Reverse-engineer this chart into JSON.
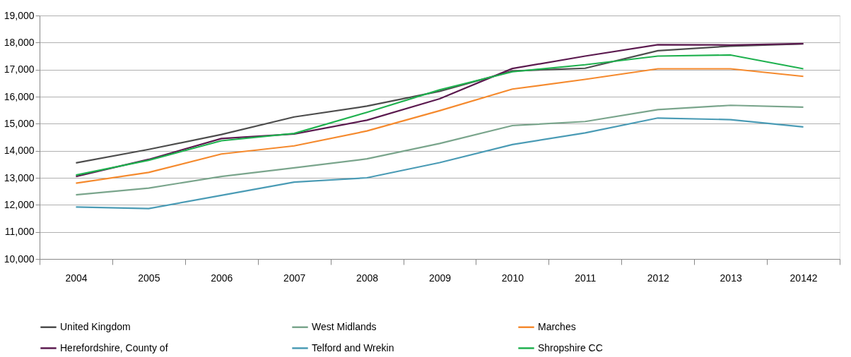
{
  "chart_data": {
    "type": "line",
    "categories": [
      "2004",
      "2005",
      "2006",
      "2007",
      "2008",
      "2009",
      "2010",
      "2011",
      "2012",
      "2013",
      "20142"
    ],
    "ylim": [
      10000,
      19000
    ],
    "yticks": [
      {
        "value": 10000,
        "label": "10,000"
      },
      {
        "value": 11000,
        "label": "11,000"
      },
      {
        "value": 12000,
        "label": "12,000"
      },
      {
        "value": 13000,
        "label": "13,000"
      },
      {
        "value": 14000,
        "label": "14,000"
      },
      {
        "value": 15000,
        "label": "15,000"
      },
      {
        "value": 16000,
        "label": "16,000"
      },
      {
        "value": 17000,
        "label": "17,000"
      },
      {
        "value": 18000,
        "label": "18,000"
      },
      {
        "value": 19000,
        "label": "19,000"
      }
    ],
    "grid": "y",
    "legend": "bottom",
    "marker": "none",
    "line_style": "solid",
    "series": [
      {
        "name": "United Kingdom",
        "color": "#4d4d4d",
        "values": [
          13550,
          14050,
          14600,
          15250,
          15650,
          16200,
          16950,
          17050,
          17700,
          17870,
          17950
        ]
      },
      {
        "name": "West Midlands",
        "color": "#7aa58c",
        "values": [
          12370,
          12620,
          13050,
          13370,
          13700,
          14270,
          14930,
          15080,
          15520,
          15680,
          15610
        ]
      },
      {
        "name": "Marches",
        "color": "#f58a2e",
        "values": [
          12800,
          13200,
          13880,
          14180,
          14730,
          15480,
          16280,
          16640,
          17030,
          17030,
          16750
        ]
      },
      {
        "name": "Herefordshire, County of",
        "color": "#5b1a4f",
        "values": [
          13050,
          13680,
          14450,
          14620,
          15130,
          15920,
          17040,
          17500,
          17920,
          17910,
          17960
        ]
      },
      {
        "name": "Telford and Wrekin",
        "color": "#4a9bb5",
        "values": [
          11920,
          11860,
          12350,
          12840,
          13000,
          13560,
          14230,
          14660,
          15210,
          15150,
          14880
        ]
      },
      {
        "name": "Shropshire CC",
        "color": "#1fb14f",
        "values": [
          13100,
          13650,
          14370,
          14640,
          15420,
          16250,
          16920,
          17180,
          17500,
          17540,
          17030
        ]
      }
    ]
  }
}
